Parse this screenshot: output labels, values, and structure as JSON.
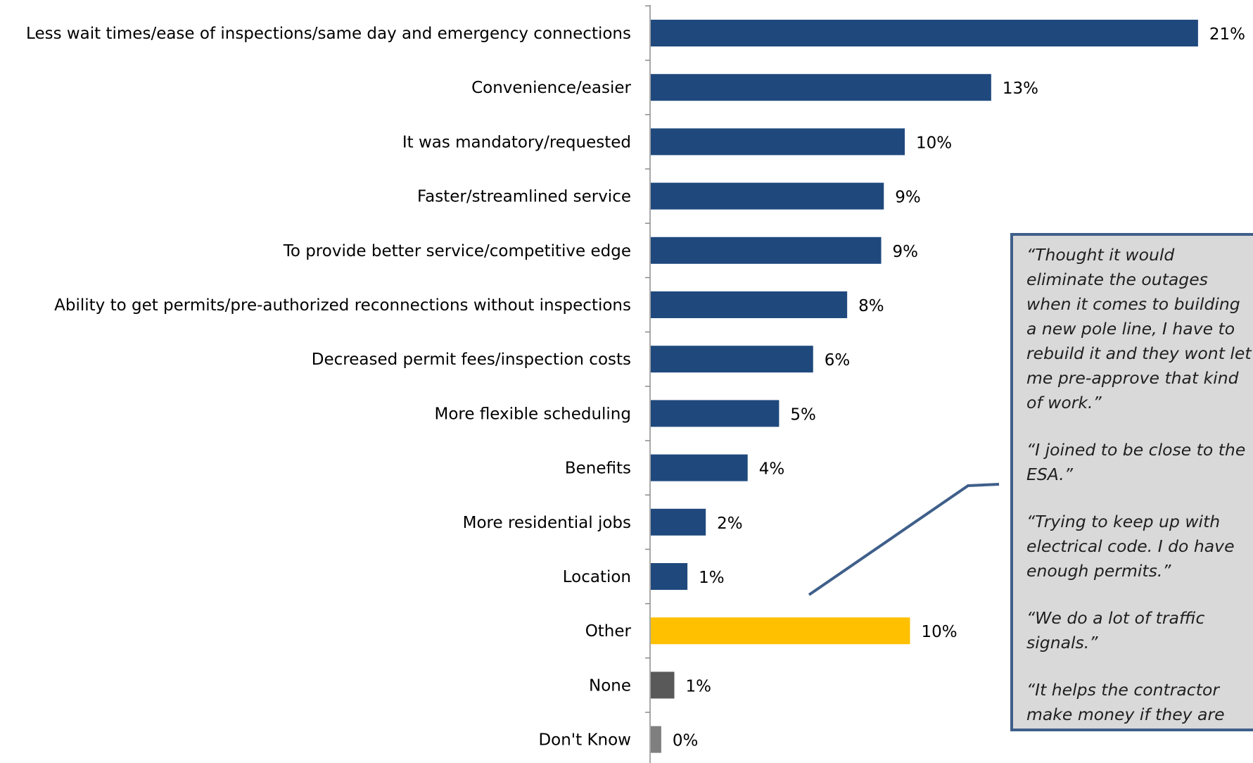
{
  "chart_data": {
    "type": "bar",
    "orientation": "horizontal",
    "categories": [
      "Less wait times/ease of inspections/same day and emergency connections",
      "Convenience/easier",
      "It was mandatory/requested",
      "Faster/streamlined service",
      "To provide better service/competitive edge",
      "Ability to get permits/pre-authorized reconnections without inspections",
      "Decreased permit fees/inspection costs",
      "More flexible scheduling",
      "Benefits",
      "More residential jobs",
      "Location",
      "Other",
      "None",
      "Don't Know"
    ],
    "values": [
      21,
      13,
      10,
      9,
      9,
      8,
      6,
      5,
      4,
      2,
      1,
      10,
      1,
      0
    ],
    "value_labels": [
      "21%",
      "13%",
      "10%",
      "9%",
      "9%",
      "8%",
      "6%",
      "5%",
      "4%",
      "2%",
      "1%",
      "10%",
      "1%",
      "0%"
    ],
    "bar_values": [
      20.9,
      13.0,
      9.7,
      8.9,
      8.8,
      7.5,
      6.2,
      4.9,
      3.7,
      2.1,
      1.4,
      9.9,
      0.9,
      0.4
    ],
    "colors": [
      "#1f497d",
      "#1f497d",
      "#1f497d",
      "#1f497d",
      "#1f497d",
      "#1f497d",
      "#1f497d",
      "#1f497d",
      "#1f497d",
      "#1f497d",
      "#1f497d",
      "#ffc000",
      "#595959",
      "#7f7f7f"
    ],
    "xlim": [
      0,
      22
    ],
    "title": "",
    "xlabel": "",
    "ylabel": "",
    "grid": false,
    "legend": "none"
  },
  "callout": {
    "quotes": [
      "“Thought it would eliminate the outages  when it comes to building a new pole line, I have to rebuild it and they wont let me pre-approve that kind of work.”",
      "“I joined to be close to the ESA.”",
      "“Trying to keep up with electrical code. I do have enough permits.”",
      "“We do a lot of traffic signals.”",
      "“It helps the contractor make money if they are honest.”"
    ],
    "border_color": "#3f5f8a",
    "background": "#d9d9d9",
    "pointer_target": "Other"
  }
}
